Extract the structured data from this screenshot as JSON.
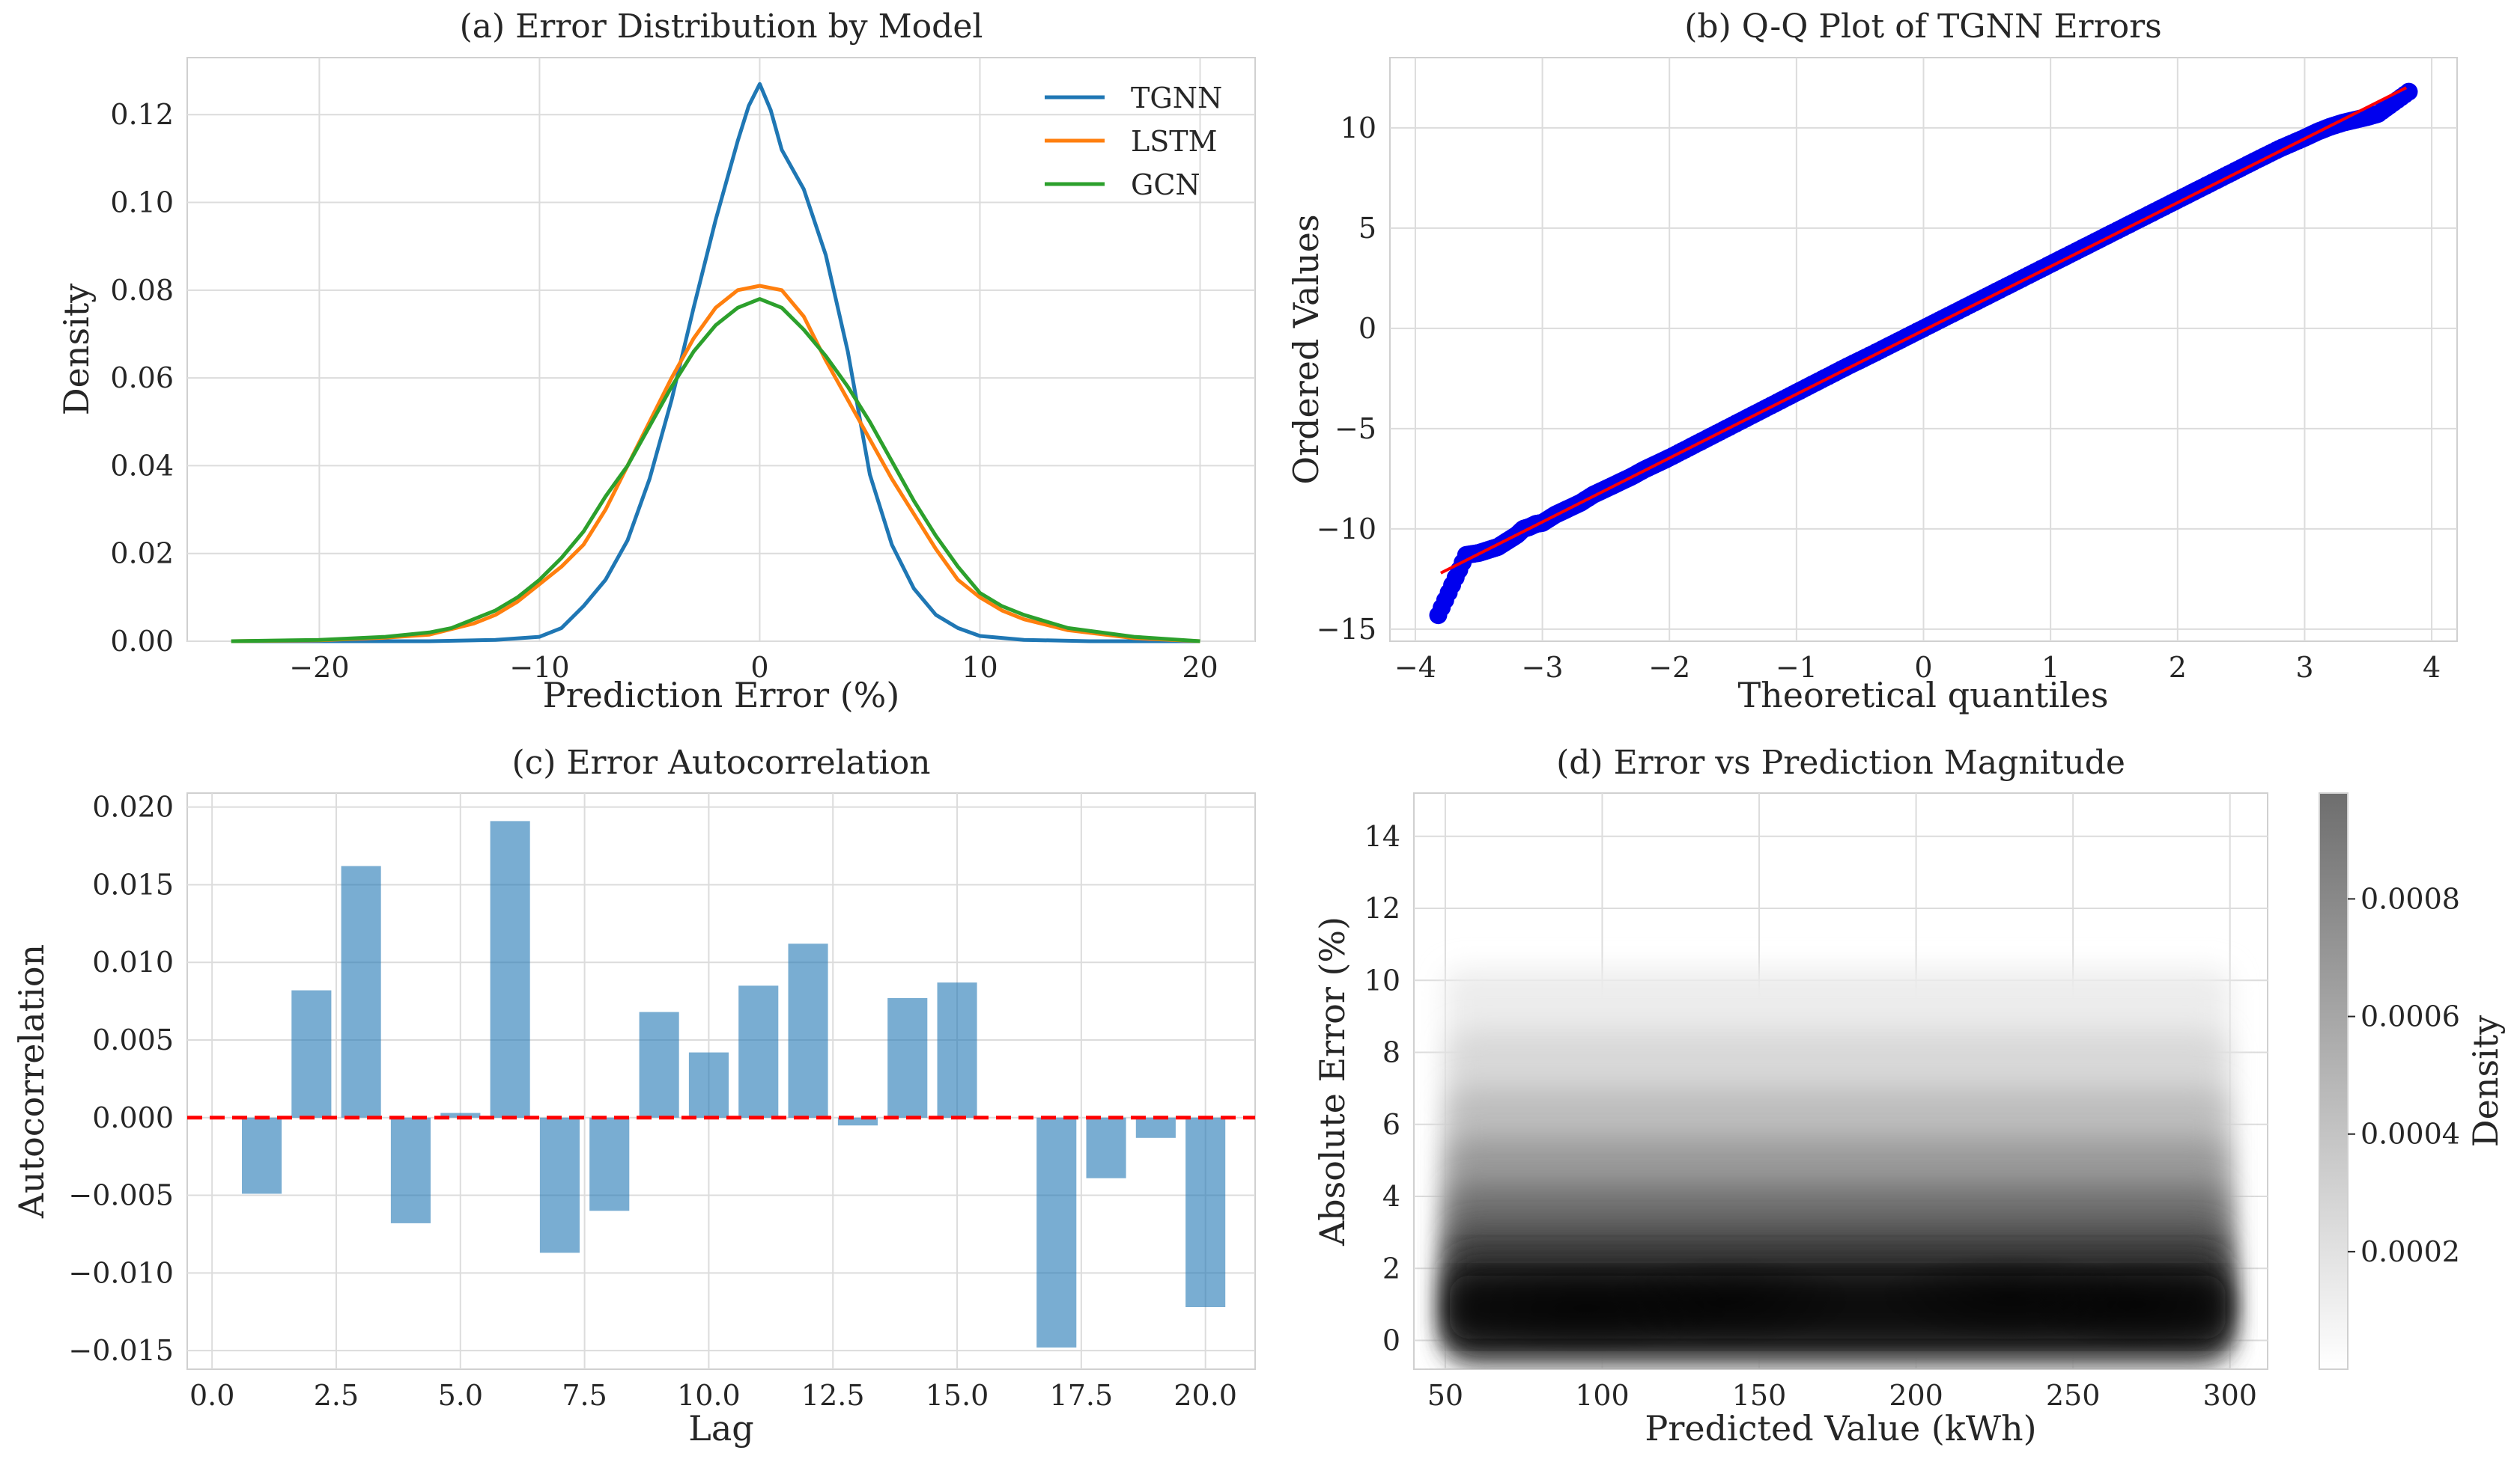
{
  "chart_data": [
    {
      "panel": "a",
      "type": "line",
      "title": "(a) Error Distribution by Model",
      "xlabel": "Prediction Error (%)",
      "ylabel": "Density",
      "xlim": [
        -26,
        22.5
      ],
      "ylim": [
        0,
        0.133
      ],
      "xticks": [
        -20,
        -10,
        0,
        10,
        20
      ],
      "xtick_labels": [
        "−20",
        "−10",
        "0",
        "10",
        "20"
      ],
      "yticks": [
        0,
        0.02,
        0.04,
        0.06,
        0.08,
        0.1,
        0.12
      ],
      "ytick_labels": [
        "0.00",
        "0.02",
        "0.04",
        "0.06",
        "0.08",
        "0.10",
        "0.12"
      ],
      "grid": true,
      "legend": "top-right",
      "series": [
        {
          "name": "TGNN",
          "color": "#1f77b4",
          "x": [
            -24,
            -15,
            -12,
            -10,
            -9,
            -8,
            -7,
            -6,
            -5,
            -4,
            -3,
            -2,
            -1,
            -0.5,
            0,
            0.5,
            1,
            2,
            3,
            4,
            5,
            6,
            7,
            8,
            9,
            10,
            12,
            15,
            20
          ],
          "y": [
            0,
            0,
            0.0003,
            0.001,
            0.003,
            0.008,
            0.014,
            0.023,
            0.037,
            0.055,
            0.076,
            0.096,
            0.114,
            0.122,
            0.127,
            0.121,
            0.112,
            0.103,
            0.088,
            0.066,
            0.038,
            0.022,
            0.012,
            0.006,
            0.003,
            0.0012,
            0.0003,
            0,
            0
          ]
        },
        {
          "name": "LSTM",
          "color": "#ff7f0e",
          "x": [
            -24,
            -20,
            -17,
            -15,
            -13,
            -12,
            -11,
            -10,
            -9,
            -8,
            -7,
            -6,
            -5,
            -4,
            -3,
            -2,
            -1,
            0,
            1,
            2,
            3,
            4,
            5,
            6,
            7,
            8,
            9,
            10,
            11,
            12,
            14,
            17,
            20
          ],
          "y": [
            0,
            0.0002,
            0.0008,
            0.0015,
            0.004,
            0.006,
            0.009,
            0.013,
            0.017,
            0.022,
            0.03,
            0.04,
            0.05,
            0.06,
            0.069,
            0.076,
            0.08,
            0.081,
            0.08,
            0.074,
            0.064,
            0.055,
            0.046,
            0.037,
            0.029,
            0.021,
            0.014,
            0.01,
            0.007,
            0.005,
            0.0025,
            0.0007,
            0
          ]
        },
        {
          "name": "GCN",
          "color": "#2ca02c",
          "x": [
            -24,
            -20,
            -17,
            -15,
            -14,
            -13,
            -12,
            -11,
            -10,
            -9,
            -8,
            -7,
            -6,
            -5,
            -4,
            -3,
            -2,
            -1,
            0,
            1,
            2,
            3,
            4,
            5,
            6,
            7,
            8,
            9,
            10,
            11,
            12,
            14,
            17,
            20
          ],
          "y": [
            0,
            0.0003,
            0.001,
            0.002,
            0.003,
            0.005,
            0.007,
            0.01,
            0.014,
            0.019,
            0.025,
            0.033,
            0.04,
            0.049,
            0.058,
            0.066,
            0.072,
            0.076,
            0.078,
            0.076,
            0.071,
            0.065,
            0.058,
            0.05,
            0.041,
            0.032,
            0.024,
            0.017,
            0.011,
            0.008,
            0.006,
            0.003,
            0.001,
            0
          ]
        }
      ]
    },
    {
      "panel": "b",
      "type": "scatter",
      "title": "(b) Q-Q Plot of TGNN Errors",
      "xlabel": "Theoretical quantiles",
      "ylabel": "Ordered Values",
      "xlim": [
        -4.2,
        4.2
      ],
      "ylim": [
        -15.6,
        13.5
      ],
      "xticks": [
        -4,
        -3,
        -2,
        -1,
        0,
        1,
        2,
        3,
        4
      ],
      "xtick_labels": [
        "−4",
        "−3",
        "−2",
        "−1",
        "0",
        "1",
        "2",
        "3",
        "4"
      ],
      "yticks": [
        -15,
        -10,
        -5,
        0,
        5,
        10
      ],
      "ytick_labels": [
        "−15",
        "−10",
        "−5",
        "0",
        "5",
        "10"
      ],
      "grid": true,
      "point_color": "#0000ee",
      "fit_color": "#ff0000",
      "fit_line": {
        "x": [
          -3.8,
          3.8
        ],
        "y": [
          -12.2,
          12.0
        ]
      },
      "points": {
        "x": [
          -3.82,
          -3.6,
          -3.5,
          -3.45,
          -3.4,
          -3.35,
          -3.3,
          -3.25,
          -3.2,
          -3.15,
          -3.1,
          -3.05,
          -3.0,
          -2.95,
          -2.9,
          -2.85,
          -2.8,
          -2.7,
          -2.6,
          -2.5,
          -2.4,
          -2.3,
          -2.2,
          -2.1,
          -2.0,
          -1.8,
          -1.6,
          -1.4,
          -1.2,
          -1.0,
          -0.8,
          -0.6,
          -0.4,
          -0.2,
          0.0,
          0.2,
          0.4,
          0.6,
          0.8,
          1.0,
          1.2,
          1.4,
          1.6,
          1.8,
          2.0,
          2.2,
          2.4,
          2.6,
          2.8,
          3.0,
          3.1,
          3.2,
          3.3,
          3.4,
          3.5,
          3.58,
          3.82
        ],
        "y": [
          -14.3,
          -11.3,
          -11.2,
          -11.1,
          -11.0,
          -10.9,
          -10.7,
          -10.5,
          -10.3,
          -10.0,
          -9.9,
          -9.75,
          -9.7,
          -9.5,
          -9.3,
          -9.15,
          -9.0,
          -8.7,
          -8.3,
          -8.0,
          -7.7,
          -7.4,
          -7.05,
          -6.75,
          -6.45,
          -5.8,
          -5.15,
          -4.5,
          -3.85,
          -3.2,
          -2.55,
          -1.9,
          -1.28,
          -0.64,
          0.0,
          0.64,
          1.28,
          1.92,
          2.56,
          3.2,
          3.84,
          4.48,
          5.12,
          5.76,
          6.4,
          7.04,
          7.68,
          8.32,
          8.95,
          9.5,
          9.8,
          10.05,
          10.25,
          10.4,
          10.55,
          10.7,
          11.8
        ]
      }
    },
    {
      "panel": "c",
      "type": "bar",
      "title": "(c) Error Autocorrelation",
      "xlabel": "Lag",
      "ylabel": "Autocorrelation",
      "xlim": [
        -0.5,
        21.0
      ],
      "ylim": [
        -0.0162,
        0.0209
      ],
      "xticks": [
        0.0,
        2.5,
        5.0,
        7.5,
        10.0,
        12.5,
        15.0,
        17.5,
        20.0
      ],
      "xtick_labels": [
        "0.0",
        "2.5",
        "5.0",
        "7.5",
        "10.0",
        "12.5",
        "15.0",
        "17.5",
        "20.0"
      ],
      "yticks": [
        -0.015,
        -0.01,
        -0.005,
        0.0,
        0.005,
        0.01,
        0.015,
        0.02
      ],
      "ytick_labels": [
        "−0.015",
        "−0.010",
        "−0.005",
        "0.000",
        "0.005",
        "0.010",
        "0.015",
        "0.020"
      ],
      "grid": true,
      "bar_color": "#1f77b4",
      "zero_line_color": "#ff0000",
      "categories": [
        1,
        2,
        3,
        4,
        5,
        6,
        7,
        8,
        9,
        10,
        11,
        12,
        13,
        14,
        15,
        16,
        17,
        18,
        19,
        20
      ],
      "values": [
        -0.0049,
        0.0082,
        0.0162,
        -0.0068,
        0.0003,
        0.0191,
        -0.0087,
        -0.006,
        0.0068,
        0.0042,
        0.0085,
        0.0112,
        -0.0005,
        0.0077,
        0.0087,
        0.0,
        -0.0148,
        -0.0039,
        -0.0013,
        -0.0122
      ]
    },
    {
      "panel": "d",
      "type": "heatmap",
      "title": "(d) Error vs Prediction Magnitude",
      "xlabel": "Predicted Value (kWh)",
      "ylabel": "Absolute Error (%)",
      "xlim": [
        40,
        312
      ],
      "ylim": [
        -0.8,
        15.2
      ],
      "xticks": [
        50,
        100,
        150,
        200,
        250,
        300
      ],
      "xtick_labels": [
        "50",
        "100",
        "150",
        "200",
        "250",
        "300"
      ],
      "yticks": [
        0,
        2,
        4,
        6,
        8,
        10,
        12,
        14
      ],
      "ytick_labels": [
        "0",
        "2",
        "4",
        "6",
        "8",
        "10",
        "12",
        "14"
      ],
      "grid": true,
      "data_x_range": [
        50,
        300
      ],
      "density_peak_error": 1.0,
      "colorbar": {
        "label": "Density",
        "range": [
          0,
          0.00098
        ],
        "ticks": [
          0.0002,
          0.0004,
          0.0006,
          0.0008
        ],
        "tick_labels": [
          "0.0002",
          "0.0004",
          "0.0006",
          "0.0008"
        ],
        "color_low": "#ffffff",
        "color_high": "#6e6e6e"
      }
    }
  ]
}
